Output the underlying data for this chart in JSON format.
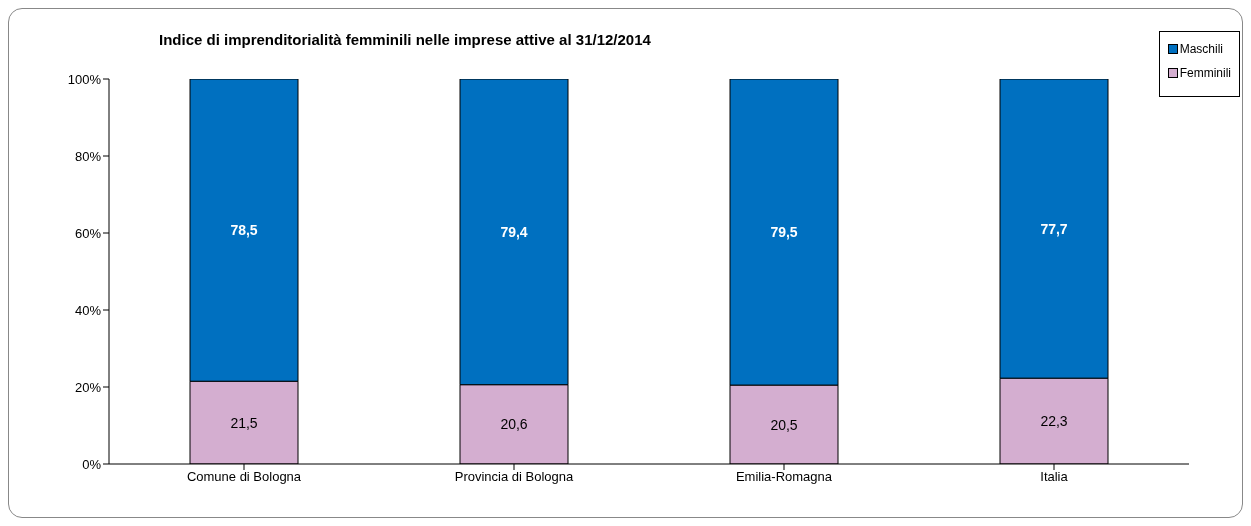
{
  "chart_data": {
    "type": "bar",
    "title": "Indice di imprenditorialità femminili nelle imprese attive al 31/12/2014",
    "categories": [
      "Comune di Bologna",
      "Provincia di Bologna",
      "Emilia-Romagna",
      "Italia"
    ],
    "stacked": true,
    "series": [
      {
        "name": "Femminili",
        "color": "#d4aed0",
        "values": [
          21.5,
          20.6,
          20.5,
          22.3
        ],
        "value_labels": [
          "21,5",
          "20,6",
          "20,5",
          "22,3"
        ]
      },
      {
        "name": "Maschili",
        "color": "#0070c0",
        "values": [
          78.5,
          79.4,
          79.5,
          77.7
        ],
        "value_labels": [
          "78,5",
          "79,4",
          "79,5",
          "77,7"
        ]
      }
    ],
    "ylim": [
      0,
      100
    ],
    "yticks": [
      {
        "value": 0,
        "label": "0%"
      },
      {
        "value": 20,
        "label": "20%"
      },
      {
        "value": 40,
        "label": "40%"
      },
      {
        "value": 60,
        "label": "60%"
      },
      {
        "value": 80,
        "label": "80%"
      },
      {
        "value": 100,
        "label": "100%"
      }
    ],
    "grid": false,
    "legend": "top right"
  }
}
